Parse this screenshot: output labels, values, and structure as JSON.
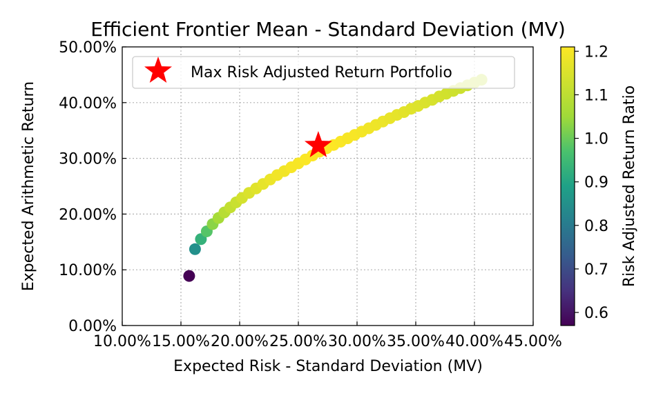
{
  "chart_data": {
    "type": "scatter",
    "title": "Efficient Frontier Mean - Standard Deviation (MV)",
    "xlabel": "Expected Risk - Standard Deviation (MV)",
    "ylabel": "Expected Arithmetic Return",
    "xlim": [
      0.1,
      0.45
    ],
    "ylim": [
      0.0,
      0.5
    ],
    "x_ticks": [
      0.1,
      0.15,
      0.2,
      0.25,
      0.3,
      0.35,
      0.4,
      0.45
    ],
    "x_tick_labels": [
      "10.00%",
      "15.00%",
      "20.00%",
      "25.00%",
      "30.00%",
      "35.00%",
      "40.00%",
      "45.00%"
    ],
    "y_ticks": [
      0.0,
      0.1,
      0.2,
      0.3,
      0.4,
      0.5
    ],
    "y_tick_labels": [
      "0.00%",
      "10.00%",
      "20.00%",
      "30.00%",
      "40.00%",
      "50.00%"
    ],
    "grid": true,
    "legend": {
      "position": "top-left",
      "label": "Max Risk Adjusted Return Portfolio"
    },
    "colorbar": {
      "label": "Risk Adjusted Return Ratio",
      "colormap": "viridis",
      "range": [
        0.57,
        1.21
      ],
      "ticks": [
        0.6,
        0.7,
        0.8,
        0.9,
        1.0,
        1.1,
        1.2
      ],
      "tick_labels": [
        "0.6",
        "0.7",
        "0.8",
        "0.9",
        "1.0",
        "1.1",
        "1.2"
      ]
    },
    "series": [
      {
        "points": [
          {
            "x": 0.157,
            "y": 0.089,
            "ratio": 0.57
          },
          {
            "x": 0.162,
            "y": 0.137,
            "ratio": 0.85
          },
          {
            "x": 0.167,
            "y": 0.155,
            "ratio": 0.93
          },
          {
            "x": 0.172,
            "y": 0.169,
            "ratio": 0.98
          },
          {
            "x": 0.177,
            "y": 0.182,
            "ratio": 1.03
          },
          {
            "x": 0.182,
            "y": 0.193,
            "ratio": 1.06
          },
          {
            "x": 0.187,
            "y": 0.203,
            "ratio": 1.09
          },
          {
            "x": 0.192,
            "y": 0.212,
            "ratio": 1.11
          },
          {
            "x": 0.197,
            "y": 0.221,
            "ratio": 1.12
          },
          {
            "x": 0.202,
            "y": 0.229,
            "ratio": 1.14
          },
          {
            "x": 0.208,
            "y": 0.238,
            "ratio": 1.15
          },
          {
            "x": 0.214,
            "y": 0.246,
            "ratio": 1.16
          },
          {
            "x": 0.22,
            "y": 0.254,
            "ratio": 1.17
          },
          {
            "x": 0.226,
            "y": 0.262,
            "ratio": 1.18
          },
          {
            "x": 0.232,
            "y": 0.27,
            "ratio": 1.19
          },
          {
            "x": 0.238,
            "y": 0.277,
            "ratio": 1.19
          },
          {
            "x": 0.244,
            "y": 0.284,
            "ratio": 1.2
          },
          {
            "x": 0.25,
            "y": 0.291,
            "ratio": 1.2
          },
          {
            "x": 0.256,
            "y": 0.298,
            "ratio": 1.205
          },
          {
            "x": 0.262,
            "y": 0.305,
            "ratio": 1.21
          },
          {
            "x": 0.268,
            "y": 0.312,
            "ratio": 1.21
          },
          {
            "x": 0.274,
            "y": 0.318,
            "ratio": 1.21
          },
          {
            "x": 0.28,
            "y": 0.324,
            "ratio": 1.21
          },
          {
            "x": 0.286,
            "y": 0.33,
            "ratio": 1.205
          },
          {
            "x": 0.292,
            "y": 0.336,
            "ratio": 1.2
          },
          {
            "x": 0.298,
            "y": 0.342,
            "ratio": 1.2
          },
          {
            "x": 0.304,
            "y": 0.348,
            "ratio": 1.195
          },
          {
            "x": 0.31,
            "y": 0.354,
            "ratio": 1.19
          },
          {
            "x": 0.316,
            "y": 0.36,
            "ratio": 1.185
          },
          {
            "x": 0.322,
            "y": 0.366,
            "ratio": 1.18
          },
          {
            "x": 0.328,
            "y": 0.372,
            "ratio": 1.175
          },
          {
            "x": 0.334,
            "y": 0.378,
            "ratio": 1.17
          },
          {
            "x": 0.34,
            "y": 0.383,
            "ratio": 1.165
          },
          {
            "x": 0.346,
            "y": 0.389,
            "ratio": 1.16
          },
          {
            "x": 0.352,
            "y": 0.394,
            "ratio": 1.155
          },
          {
            "x": 0.358,
            "y": 0.4,
            "ratio": 1.15
          },
          {
            "x": 0.364,
            "y": 0.405,
            "ratio": 1.145
          },
          {
            "x": 0.37,
            "y": 0.411,
            "ratio": 1.14
          },
          {
            "x": 0.376,
            "y": 0.416,
            "ratio": 1.135
          },
          {
            "x": 0.382,
            "y": 0.421,
            "ratio": 1.13
          },
          {
            "x": 0.388,
            "y": 0.426,
            "ratio": 1.125
          },
          {
            "x": 0.394,
            "y": 0.431,
            "ratio": 1.12
          },
          {
            "x": 0.4,
            "y": 0.436,
            "ratio": 1.115
          },
          {
            "x": 0.406,
            "y": 0.441,
            "ratio": 1.11
          }
        ]
      }
    ],
    "highlight": {
      "x": 0.267,
      "y": 0.323,
      "marker": "star",
      "color": "#ff0000"
    }
  }
}
